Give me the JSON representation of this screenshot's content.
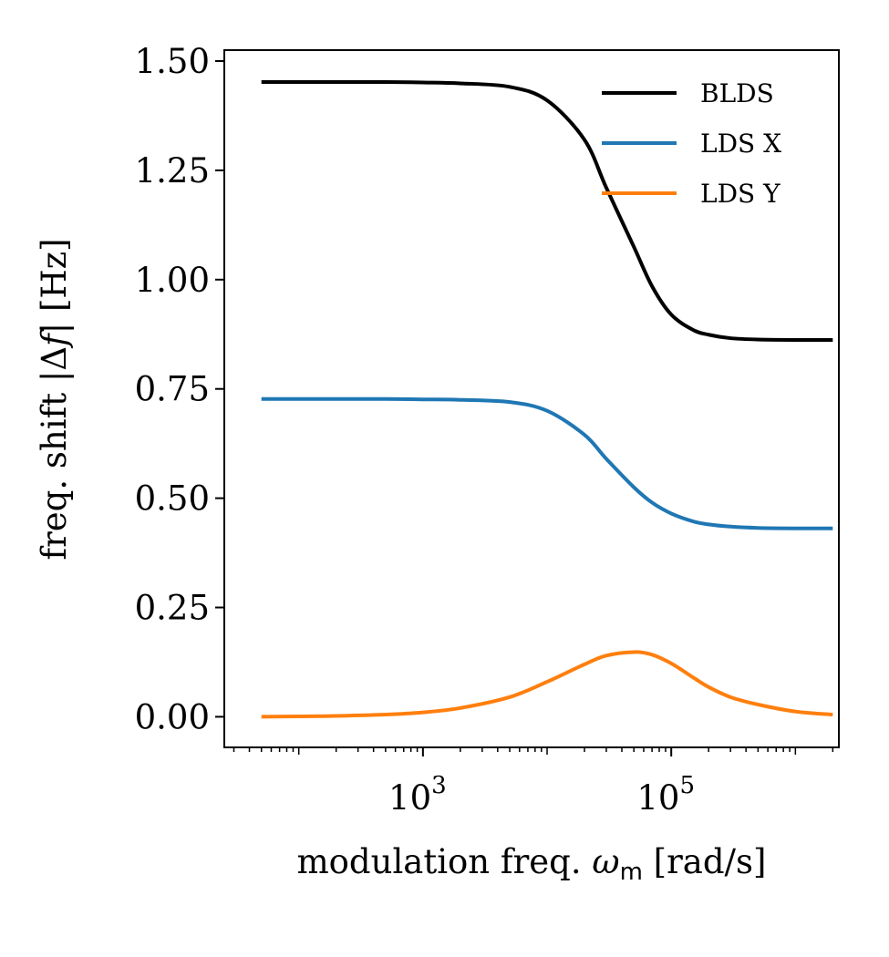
{
  "chart_data": {
    "type": "line",
    "title": "",
    "xlabel": "modulation freq. ω_m [rad/s]",
    "xlabel_parts": {
      "pre": "modulation freq. ",
      "sym": "ω",
      "sub": "m",
      "post": " [rad/s]"
    },
    "ylabel": "freq. shift |Δf| [Hz]",
    "ylabel_parts": {
      "pre": "freq. shift |Δ",
      "sym": "f",
      "post": "| [Hz]"
    },
    "xscale": "log",
    "xlim_log10": [
      1.4,
      6.35
    ],
    "ylim": [
      -0.07,
      1.525
    ],
    "xticks": [
      {
        "exp": 3,
        "base": "10",
        "sup": "3"
      },
      {
        "exp": 5,
        "base": "10",
        "sup": "5"
      }
    ],
    "yticks": [
      {
        "value": 0.0,
        "label": "0.00"
      },
      {
        "value": 0.25,
        "label": "0.25"
      },
      {
        "value": 0.5,
        "label": "0.50"
      },
      {
        "value": 0.75,
        "label": "0.75"
      },
      {
        "value": 1.0,
        "label": "1.00"
      },
      {
        "value": 1.25,
        "label": "1.25"
      },
      {
        "value": 1.5,
        "label": "1.50"
      }
    ],
    "grid": false,
    "legend": "top-right",
    "x": [
      50,
      100,
      200,
      500,
      1000,
      2000,
      5000,
      10000,
      20000,
      30000,
      50000,
      70000,
      100000,
      150000,
      200000,
      300000,
      500000,
      1000000,
      2000000
    ],
    "series": [
      {
        "name": "BLDS",
        "color": "#000000",
        "values": [
          1.452,
          1.452,
          1.452,
          1.452,
          1.451,
          1.449,
          1.441,
          1.41,
          1.32,
          1.21,
          1.075,
          0.985,
          0.92,
          0.885,
          0.874,
          0.866,
          0.863,
          0.862,
          0.862
        ]
      },
      {
        "name": "LDS X",
        "color": "#1f77b4",
        "values": [
          0.727,
          0.727,
          0.727,
          0.727,
          0.726,
          0.725,
          0.72,
          0.7,
          0.645,
          0.59,
          0.525,
          0.49,
          0.465,
          0.447,
          0.44,
          0.435,
          0.432,
          0.431,
          0.431
        ]
      },
      {
        "name": "LDS Y",
        "color": "#ff7f0e",
        "values": [
          0.0,
          0.001,
          0.002,
          0.005,
          0.01,
          0.02,
          0.045,
          0.08,
          0.12,
          0.14,
          0.148,
          0.142,
          0.122,
          0.09,
          0.068,
          0.045,
          0.028,
          0.012,
          0.005
        ]
      }
    ]
  }
}
